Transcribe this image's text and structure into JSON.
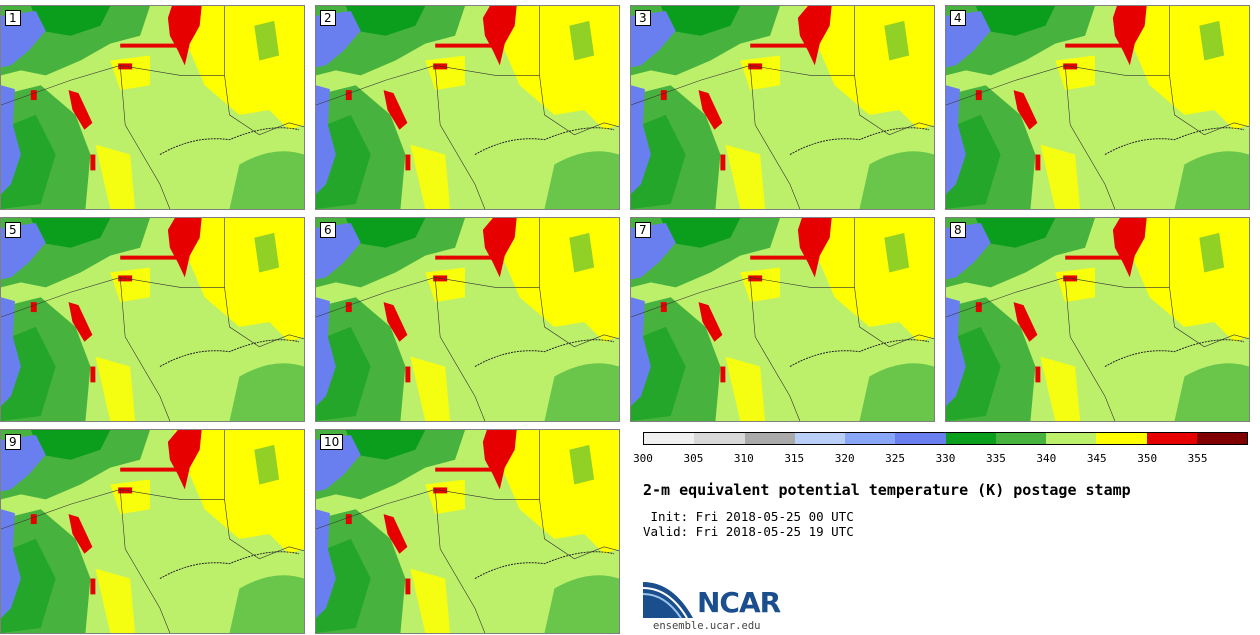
{
  "panels": [
    {
      "label": "1"
    },
    {
      "label": "2"
    },
    {
      "label": "3"
    },
    {
      "label": "4"
    },
    {
      "label": "5"
    },
    {
      "label": "6"
    },
    {
      "label": "7"
    },
    {
      "label": "8"
    },
    {
      "label": "9"
    },
    {
      "label": "10"
    }
  ],
  "colorbar": {
    "colors": [
      "#f0f0f0",
      "#d8d8d8",
      "#a9a9a9",
      "#b9cff8",
      "#8aa6f6",
      "#6a7fef",
      "#0b9d1c",
      "#47b33e",
      "#bdf06a",
      "#ffff00",
      "#e60000",
      "#800000"
    ],
    "ticks": [
      "300",
      "305",
      "310",
      "315",
      "320",
      "325",
      "330",
      "335",
      "340",
      "345",
      "350",
      "355"
    ]
  },
  "title": "2-m equivalent potential temperature (K) postage stamp",
  "init": " Init: Fri 2018-05-25 00 UTC",
  "valid": "Valid: Fri 2018-05-25 19 UTC",
  "logo": {
    "text": "NCAR",
    "url": "ensemble.ucar.edu"
  },
  "map_colors": {
    "water": "#6a7fef",
    "green_dark": "#0b9d1c",
    "green": "#47b33e",
    "light_green": "#bdf06a",
    "yellow": "#ffff00",
    "red": "#e60000"
  }
}
